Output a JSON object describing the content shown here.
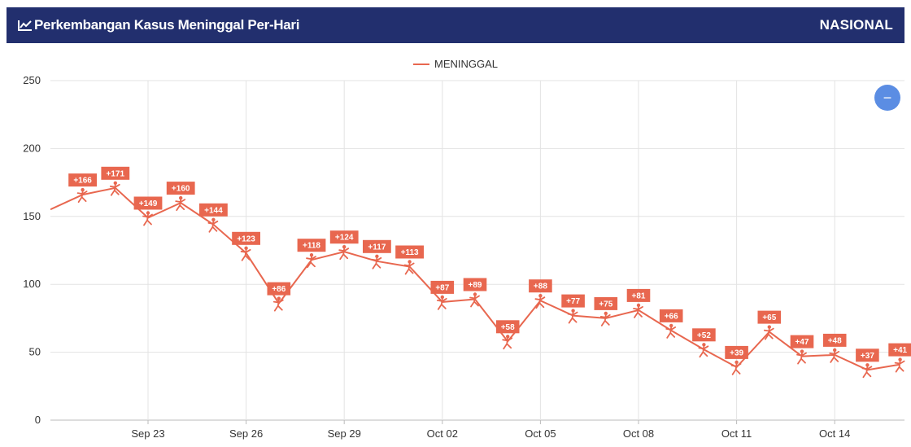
{
  "header": {
    "title": "Perkembangan Kasus Meninggal Per-Hari",
    "scope": "NASIONAL",
    "icon": "chart-line-icon"
  },
  "controls": {
    "collapse_label": "−"
  },
  "colors": {
    "header_bg": "#222f6e",
    "series": "#e8674f",
    "grid": "#e3e3e3",
    "button": "#5b8de3"
  },
  "chart_data": {
    "type": "line",
    "title": "Perkembangan Kasus Meninggal Per-Hari",
    "xlabel": "",
    "ylabel": "",
    "ylim": [
      0,
      250
    ],
    "y_ticks": [
      0,
      50,
      100,
      150,
      200,
      250
    ],
    "x_tick_labels": [
      "Sep 23",
      "Sep 26",
      "Sep 29",
      "Oct 02",
      "Oct 05",
      "Oct 08",
      "Oct 11",
      "Oct 14"
    ],
    "x_tick_dates": [
      "Sep 23",
      "Sep 26",
      "Sep 29",
      "Oct 02",
      "Oct 05",
      "Oct 08",
      "Oct 11",
      "Oct 14"
    ],
    "grid": true,
    "legend_position": "top-center",
    "series": [
      {
        "name": "MENINGGAL",
        "x": [
          "Sep 20",
          "Sep 21",
          "Sep 22",
          "Sep 23",
          "Sep 24",
          "Sep 25",
          "Sep 26",
          "Sep 27",
          "Sep 28",
          "Sep 29",
          "Sep 30",
          "Oct 01",
          "Oct 02",
          "Oct 03",
          "Oct 04",
          "Oct 05",
          "Oct 06",
          "Oct 07",
          "Oct 08",
          "Oct 09",
          "Oct 10",
          "Oct 11",
          "Oct 12",
          "Oct 13",
          "Oct 14",
          "Oct 15",
          "Oct 16"
        ],
        "values": [
          155,
          166,
          171,
          149,
          160,
          144,
          123,
          86,
          118,
          124,
          117,
          113,
          87,
          89,
          58,
          88,
          77,
          75,
          81,
          66,
          52,
          39,
          65,
          47,
          48,
          37,
          41
        ],
        "labels": [
          "",
          "+166",
          "+171",
          "+149",
          "+160",
          "+144",
          "+123",
          "+86",
          "+118",
          "+124",
          "+117",
          "+113",
          "+87",
          "+89",
          "+58",
          "+88",
          "+77",
          "+75",
          "+81",
          "+66",
          "+52",
          "+39",
          "+65",
          "+47",
          "+48",
          "+37",
          "+41"
        ]
      }
    ]
  }
}
